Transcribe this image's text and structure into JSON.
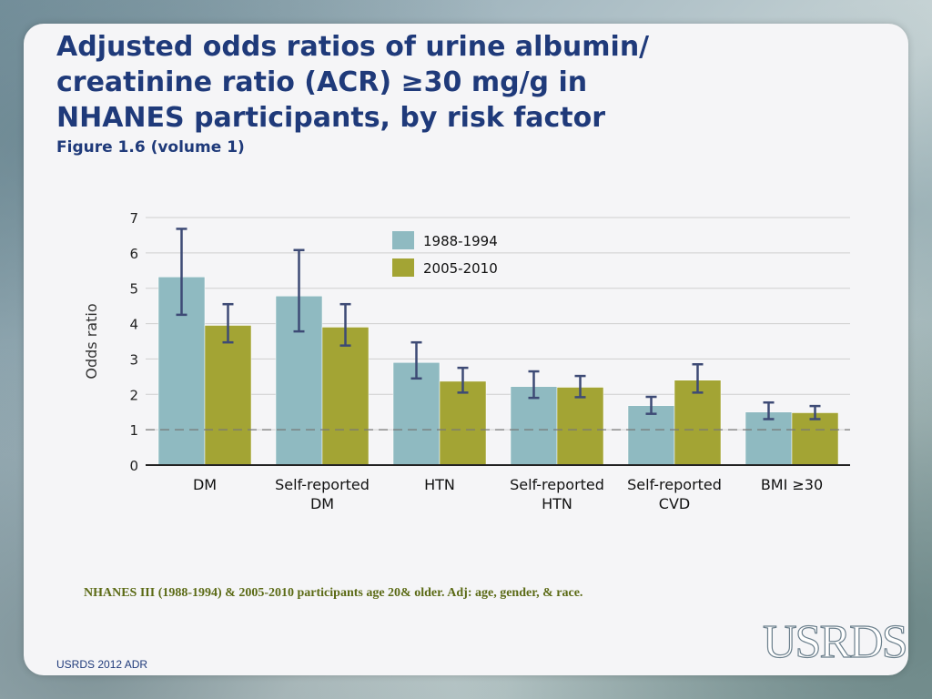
{
  "slide": {
    "title": "Adjusted odds ratios of urine albumin/ creatinine ratio (ACR) ≥30 mg/g in NHANES participants, by risk factor",
    "subtitle": "Figure 1.6 (volume 1)",
    "note": "NHANES III (1988-1994) & 2005-2010 participants age 20& older. Adj: age, gender, & race.",
    "footer": "USRDS 2012 ADR",
    "logo": "USRDS"
  },
  "chart_data": {
    "type": "bar",
    "title": "",
    "xlabel": "",
    "ylabel": "Odds ratio",
    "ylim": [
      0,
      7
    ],
    "yticks": [
      "0",
      "1",
      "2",
      "3",
      "4",
      "5",
      "6",
      "7"
    ],
    "grid": true,
    "reference_line": 1,
    "legend_position": "top-center",
    "categories": [
      [
        "DM"
      ],
      [
        "Self-reported",
        "DM"
      ],
      [
        "HTN"
      ],
      [
        "Self-reported",
        "HTN"
      ],
      [
        "Self-reported",
        "CVD"
      ],
      [
        "BMI ≥30"
      ]
    ],
    "series": [
      {
        "name": "1988-1994",
        "color": "#8fbac1",
        "values": [
          5.32,
          4.78,
          2.9,
          2.22,
          1.68,
          1.5
        ],
        "ci_low": [
          4.25,
          3.78,
          2.45,
          1.9,
          1.45,
          1.3
        ],
        "ci_high": [
          6.68,
          6.08,
          3.47,
          2.65,
          1.93,
          1.77
        ]
      },
      {
        "name": "2005-2010",
        "color": "#a3a434",
        "values": [
          3.95,
          3.9,
          2.37,
          2.2,
          2.4,
          1.48
        ],
        "ci_low": [
          3.47,
          3.38,
          2.05,
          1.92,
          2.05,
          1.3
        ],
        "ci_high": [
          4.55,
          4.55,
          2.75,
          2.52,
          2.85,
          1.67
        ]
      }
    ],
    "colors": {
      "grid": "#cfcfcf",
      "axis": "#222222",
      "error_bar": "#3d4a75",
      "reference": "#777777"
    }
  }
}
